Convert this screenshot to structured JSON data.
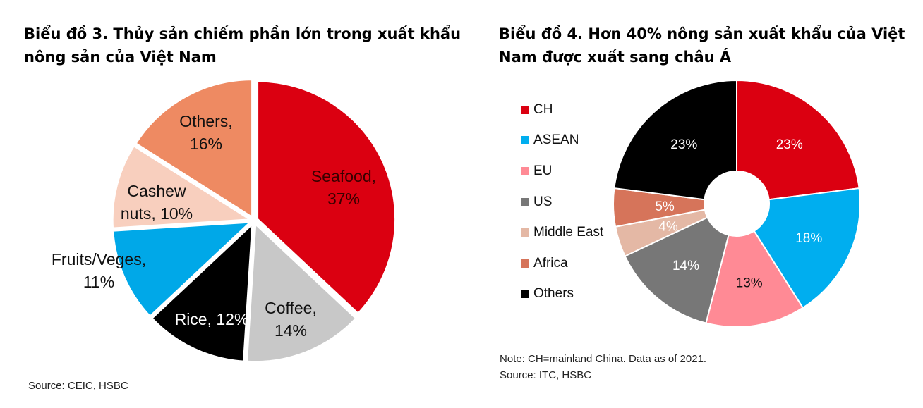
{
  "chart_data": [
    {
      "type": "pie",
      "title": "Biểu đồ 3. Thủy sản chiếm phần lớn trong xuất khẩu nông sản của Việt Nam",
      "source": "Source: CEIC, HSBC",
      "slices": [
        {
          "name": "Seafood",
          "value": 37,
          "label": "37%",
          "color": "#db0011"
        },
        {
          "name": "Coffee",
          "value": 14,
          "label": "14%",
          "color": "#c8c8c8"
        },
        {
          "name": "Rice",
          "value": 12,
          "label": "12%",
          "color": "#000000"
        },
        {
          "name": "Fruits/Veges",
          "value": 11,
          "label": "11%",
          "color": "#00a8e8"
        },
        {
          "name": "Cashew nuts",
          "value": 10,
          "label": "10%",
          "color": "#f8cfbe"
        },
        {
          "name": "Others",
          "value": 16,
          "label": "16%",
          "color": "#ee8a62"
        }
      ]
    },
    {
      "type": "pie",
      "subtype": "donut",
      "title": "Biểu đồ 4. Hơn 40% nông sản xuất khẩu của Việt Nam được xuất sang châu Á",
      "note": "Note: CH=mainland China. Data as of 2021.",
      "source": "Source: ITC, HSBC",
      "legend_position": "left",
      "slices": [
        {
          "name": "CH",
          "value": 23,
          "label": "23%",
          "color": "#db0011"
        },
        {
          "name": "ASEAN",
          "value": 18,
          "label": "18%",
          "color": "#00aeef"
        },
        {
          "name": "EU",
          "value": 13,
          "label": "13%",
          "color": "#ff8a95"
        },
        {
          "name": "US",
          "value": 14,
          "label": "14%",
          "color": "#777777"
        },
        {
          "name": "Middle East",
          "value": 4,
          "label": "4%",
          "color": "#e4b8a5"
        },
        {
          "name": "Africa",
          "value": 5,
          "label": "5%",
          "color": "#d6745a"
        },
        {
          "name": "Others",
          "value": 23,
          "label": "23%",
          "color": "#000000"
        }
      ]
    }
  ]
}
